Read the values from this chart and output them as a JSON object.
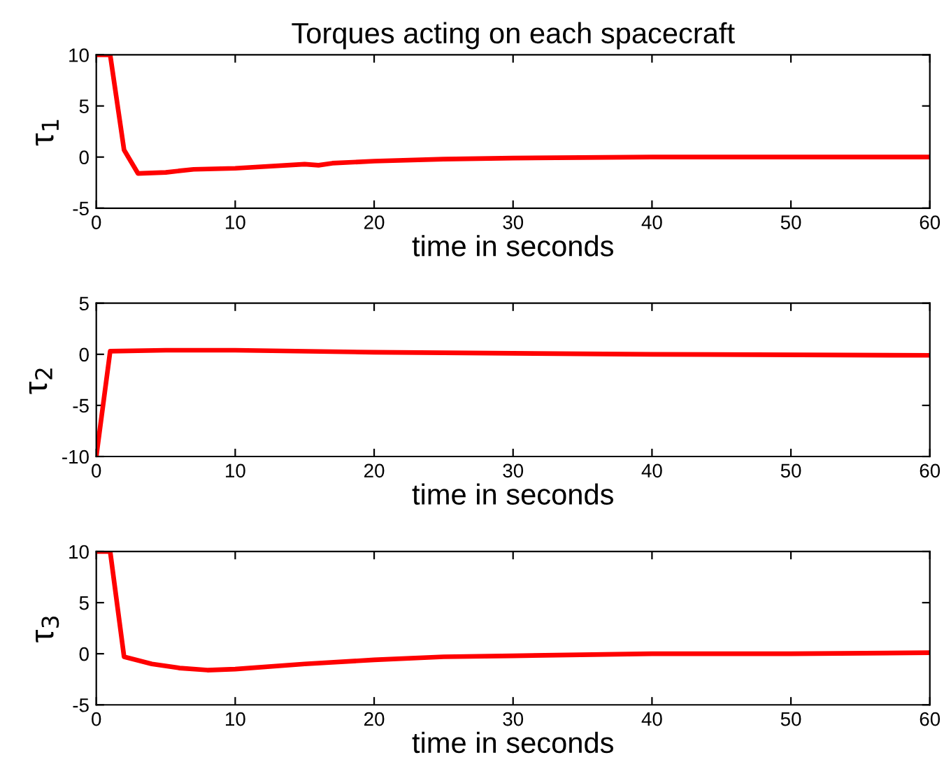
{
  "chart_data": [
    {
      "type": "line",
      "title": "Torques acting on each spacecraft",
      "xlabel": "time in seconds",
      "ylabel": "τ$_{1}$",
      "xlim": [
        0,
        60
      ],
      "ylim": [
        -5,
        10
      ],
      "xticks": [
        0,
        10,
        20,
        30,
        40,
        50,
        60
      ],
      "yticks": [
        -5,
        0,
        5,
        10
      ],
      "grid": false,
      "series": [
        {
          "color": "#ff0000",
          "x": [
            0,
            1,
            2,
            3,
            5,
            7,
            10,
            15,
            16,
            17,
            20,
            25,
            30,
            40,
            60
          ],
          "values": [
            10,
            10,
            0.7,
            -1.6,
            -1.5,
            -1.2,
            -1.1,
            -0.7,
            -0.8,
            -0.6,
            -0.4,
            -0.2,
            -0.1,
            0,
            0
          ]
        }
      ]
    },
    {
      "type": "line",
      "xlabel": "time in seconds",
      "ylabel": "τ$_{2}$",
      "xlim": [
        0,
        60
      ],
      "ylim": [
        -10,
        5
      ],
      "xticks": [
        0,
        10,
        20,
        30,
        40,
        50,
        60
      ],
      "yticks": [
        -10,
        -5,
        0,
        5
      ],
      "grid": false,
      "series": [
        {
          "color": "#ff0000",
          "x": [
            0,
            1,
            5,
            10,
            20,
            30,
            40,
            60
          ],
          "values": [
            -10,
            0.3,
            0.4,
            0.4,
            0.2,
            0.1,
            0,
            -0.1
          ]
        }
      ]
    },
    {
      "type": "line",
      "xlabel": "time in seconds",
      "ylabel": "τ$_{3}$",
      "xlim": [
        0,
        60
      ],
      "ylim": [
        -5,
        10
      ],
      "xticks": [
        0,
        10,
        20,
        30,
        40,
        50,
        60
      ],
      "yticks": [
        -5,
        0,
        5,
        10
      ],
      "grid": false,
      "series": [
        {
          "color": "#ff0000",
          "x": [
            0,
            1,
            2,
            4,
            6,
            8,
            10,
            15,
            20,
            25,
            30,
            40,
            50,
            60
          ],
          "values": [
            10,
            10,
            -0.3,
            -1.0,
            -1.4,
            -1.6,
            -1.5,
            -1.0,
            -0.6,
            -0.3,
            -0.2,
            0,
            0,
            0.1
          ]
        }
      ]
    }
  ]
}
